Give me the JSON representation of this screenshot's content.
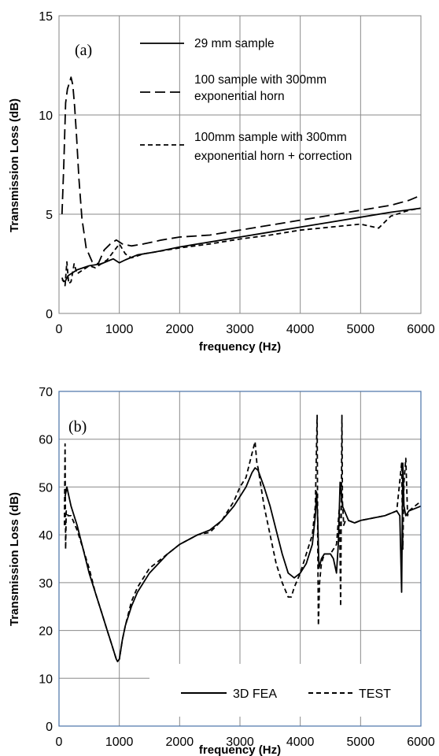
{
  "chart_data": [
    {
      "type": "line",
      "panel_label": "(a)",
      "xlabel": "frequency (Hz)",
      "ylabel": "Transmission Loss (dB)",
      "xlim": [
        0,
        6000
      ],
      "ylim": [
        0,
        15
      ],
      "xticks": [
        0,
        1000,
        2000,
        3000,
        4000,
        5000,
        6000
      ],
      "yticks": [
        0,
        5,
        10,
        15
      ],
      "grid": true,
      "legend_position": "top-right",
      "series": [
        {
          "name": "29 mm sample",
          "style": "solid",
          "x": [
            50,
            100,
            150,
            200,
            300,
            500,
            700,
            900,
            1000,
            1100,
            1300,
            1600,
            2000,
            2500,
            3000,
            3500,
            4000,
            4500,
            5000,
            5500,
            6000
          ],
          "y": [
            1.7,
            1.6,
            1.9,
            2.0,
            2.2,
            2.4,
            2.5,
            2.75,
            2.55,
            2.7,
            2.95,
            3.1,
            3.35,
            3.6,
            3.85,
            4.1,
            4.35,
            4.6,
            4.85,
            5.1,
            5.3
          ]
        },
        {
          "name": "100 sample with 300mm exponential horn",
          "style": "long-dash",
          "x": [
            50,
            80,
            110,
            140,
            170,
            200,
            230,
            260,
            290,
            330,
            380,
            450,
            550,
            650,
            750,
            850,
            950,
            1050,
            1200,
            1400,
            1700,
            2000,
            2500,
            3000,
            3500,
            4000,
            4500,
            5000,
            5500,
            5800,
            6000
          ],
          "y": [
            5.0,
            7.5,
            10.6,
            11.3,
            11.6,
            11.9,
            11.5,
            10.4,
            9.0,
            6.8,
            4.8,
            3.3,
            2.6,
            2.5,
            3.2,
            3.5,
            3.7,
            3.5,
            3.4,
            3.5,
            3.7,
            3.85,
            3.95,
            4.2,
            4.45,
            4.7,
            4.95,
            5.2,
            5.45,
            5.7,
            5.95
          ]
        },
        {
          "name": "100mm sample with 300mm exponential horn + correction",
          "style": "short-dash",
          "x": [
            50,
            100,
            130,
            160,
            200,
            250,
            300,
            400,
            500,
            600,
            700,
            800,
            900,
            1000,
            1100,
            1200,
            1400,
            1700,
            2000,
            2500,
            3000,
            3500,
            4000,
            4500,
            5000,
            5300,
            5500,
            5800,
            6000
          ],
          "y": [
            1.8,
            1.4,
            2.6,
            1.5,
            1.6,
            2.5,
            2.0,
            2.2,
            2.4,
            2.3,
            2.5,
            2.7,
            3.1,
            3.5,
            3.0,
            2.8,
            3.0,
            3.15,
            3.3,
            3.5,
            3.75,
            3.95,
            4.2,
            4.35,
            4.5,
            4.3,
            4.9,
            5.2,
            5.3
          ]
        }
      ]
    },
    {
      "type": "line",
      "panel_label": "(b)",
      "xlabel": "frequency (Hz)",
      "ylabel": "Transmission Loss (dB)",
      "xlim": [
        0,
        6000
      ],
      "ylim": [
        0,
        70
      ],
      "xticks": [
        0,
        1000,
        2000,
        3000,
        4000,
        5000,
        6000
      ],
      "yticks": [
        0,
        10,
        20,
        30,
        40,
        50,
        60,
        70
      ],
      "grid": true,
      "legend_position": "bottom-right",
      "series": [
        {
          "name": "3D FEA",
          "style": "solid",
          "x": [
            100,
            130,
            200,
            300,
            400,
            500,
            600,
            700,
            800,
            850,
            900,
            950,
            970,
            1000,
            1050,
            1100,
            1200,
            1300,
            1500,
            1800,
            2000,
            2300,
            2500,
            2700,
            2900,
            3100,
            3200,
            3250,
            3300,
            3400,
            3500,
            3600,
            3700,
            3800,
            3900,
            4000,
            4100,
            4200,
            4250,
            4270,
            4290,
            4310,
            4350,
            4400,
            4500,
            4550,
            4600,
            4630,
            4660,
            4700,
            4800,
            4900,
            5000,
            5200,
            5400,
            5600,
            5650,
            5680,
            5700,
            5720,
            5750,
            5800,
            5900,
            6000
          ],
          "y": [
            48,
            50,
            46,
            42,
            37,
            32,
            28,
            24,
            20,
            18,
            16,
            14,
            13.5,
            14,
            18,
            21,
            25,
            28,
            32,
            36,
            38,
            40,
            41,
            43,
            46,
            50,
            53,
            54,
            53.5,
            50,
            46,
            41,
            36,
            32,
            31,
            32,
            34,
            38,
            44,
            49,
            43,
            33,
            35,
            36,
            36,
            35,
            32,
            38,
            51,
            46,
            43,
            42.5,
            43,
            43.5,
            44,
            45,
            44,
            28,
            55,
            46,
            44,
            45,
            45.5,
            46
          ]
        },
        {
          "name": "TEST",
          "style": "short-dash",
          "x": [
            90,
            100,
            110,
            120,
            150,
            200,
            300,
            400,
            500,
            600,
            700,
            800,
            900,
            950,
            970,
            1000,
            1050,
            1100,
            1200,
            1300,
            1500,
            1800,
            2000,
            2300,
            2500,
            2700,
            2900,
            3000,
            3100,
            3200,
            3250,
            3280,
            3300,
            3350,
            3400,
            3500,
            3600,
            3700,
            3800,
            3850,
            3900,
            4000,
            4100,
            4200,
            4250,
            4280,
            4290,
            4300,
            4320,
            4350,
            4400,
            4500,
            4600,
            4650,
            4670,
            4690,
            4700,
            4720,
            4750,
            4800,
            4900,
            5000,
            5200,
            5400,
            5600,
            5680,
            5700,
            5720,
            5750,
            5780,
            5800,
            5900,
            6000
          ],
          "y": [
            42,
            59,
            37,
            45,
            44,
            44,
            41,
            37,
            33,
            28,
            24,
            20,
            16,
            14,
            13.5,
            14,
            18,
            21,
            26,
            29,
            33,
            36,
            38,
            40,
            40.5,
            43,
            47,
            50,
            52,
            57,
            59.5,
            55,
            54,
            50,
            46,
            40,
            34,
            30,
            27,
            27,
            29,
            32,
            36,
            40,
            46,
            65,
            38,
            21,
            30,
            34,
            36,
            36,
            38,
            46,
            25,
            65,
            47,
            42,
            43,
            43,
            42.5,
            43,
            43.5,
            44,
            45,
            55,
            37,
            51,
            56,
            44,
            45,
            46,
            47
          ]
        }
      ]
    }
  ]
}
